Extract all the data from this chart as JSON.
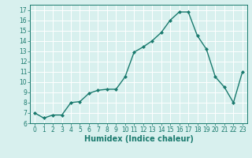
{
  "x": [
    0,
    1,
    2,
    3,
    4,
    5,
    6,
    7,
    8,
    9,
    10,
    11,
    12,
    13,
    14,
    15,
    16,
    17,
    18,
    19,
    20,
    21,
    22,
    23
  ],
  "y": [
    7.0,
    6.5,
    6.8,
    6.8,
    8.0,
    8.1,
    8.9,
    9.2,
    9.3,
    9.3,
    10.5,
    12.9,
    13.4,
    14.0,
    14.8,
    16.0,
    16.8,
    16.8,
    14.5,
    13.2,
    10.5,
    9.5,
    8.0,
    11.0
  ],
  "line_color": "#1a7a6e",
  "marker": "D",
  "marker_size": 2.0,
  "bg_color": "#d8f0ee",
  "grid_color": "#ffffff",
  "xlabel": "Humidex (Indice chaleur)",
  "xlabel_fontsize": 7,
  "xlim": [
    -0.5,
    23.5
  ],
  "ylim": [
    6,
    17.5
  ],
  "yticks": [
    6,
    7,
    8,
    9,
    10,
    11,
    12,
    13,
    14,
    15,
    16,
    17
  ],
  "xticks": [
    0,
    1,
    2,
    3,
    4,
    5,
    6,
    7,
    8,
    9,
    10,
    11,
    12,
    13,
    14,
    15,
    16,
    17,
    18,
    19,
    20,
    21,
    22,
    23
  ],
  "tick_fontsize": 5.5,
  "line_width": 1.0
}
